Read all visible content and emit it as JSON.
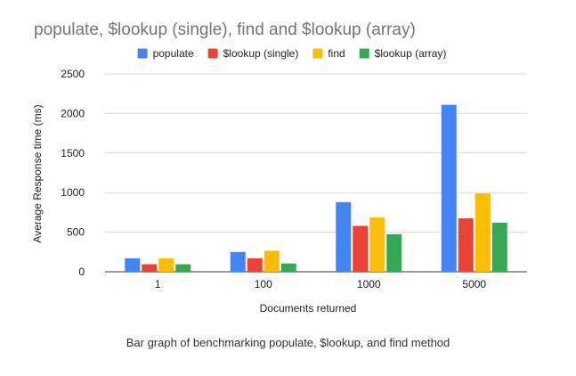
{
  "chart_data": {
    "type": "bar",
    "title": "populate, $lookup (single), find and $lookup (array)",
    "xlabel": "Documents returned",
    "ylabel": "Average Response time (ms)",
    "categories": [
      "1",
      "100",
      "1000",
      "5000"
    ],
    "ylim": [
      0,
      2500
    ],
    "yticks": [
      0,
      500,
      1000,
      1500,
      2000,
      2500
    ],
    "grid": true,
    "legend": "top",
    "series": [
      {
        "name": "populate",
        "color": "#4285F4",
        "values": [
          170,
          250,
          880,
          2110
        ]
      },
      {
        "name": "$lookup (single)",
        "color": "#EA4335",
        "values": [
          95,
          170,
          580,
          675
        ]
      },
      {
        "name": "find",
        "color": "#FBBC04",
        "values": [
          170,
          265,
          685,
          990
        ]
      },
      {
        "name": "$lookup (array)",
        "color": "#34A853",
        "values": [
          95,
          105,
          475,
          620
        ]
      }
    ]
  },
  "caption": "Bar graph of benchmarking populate, $lookup, and find method"
}
